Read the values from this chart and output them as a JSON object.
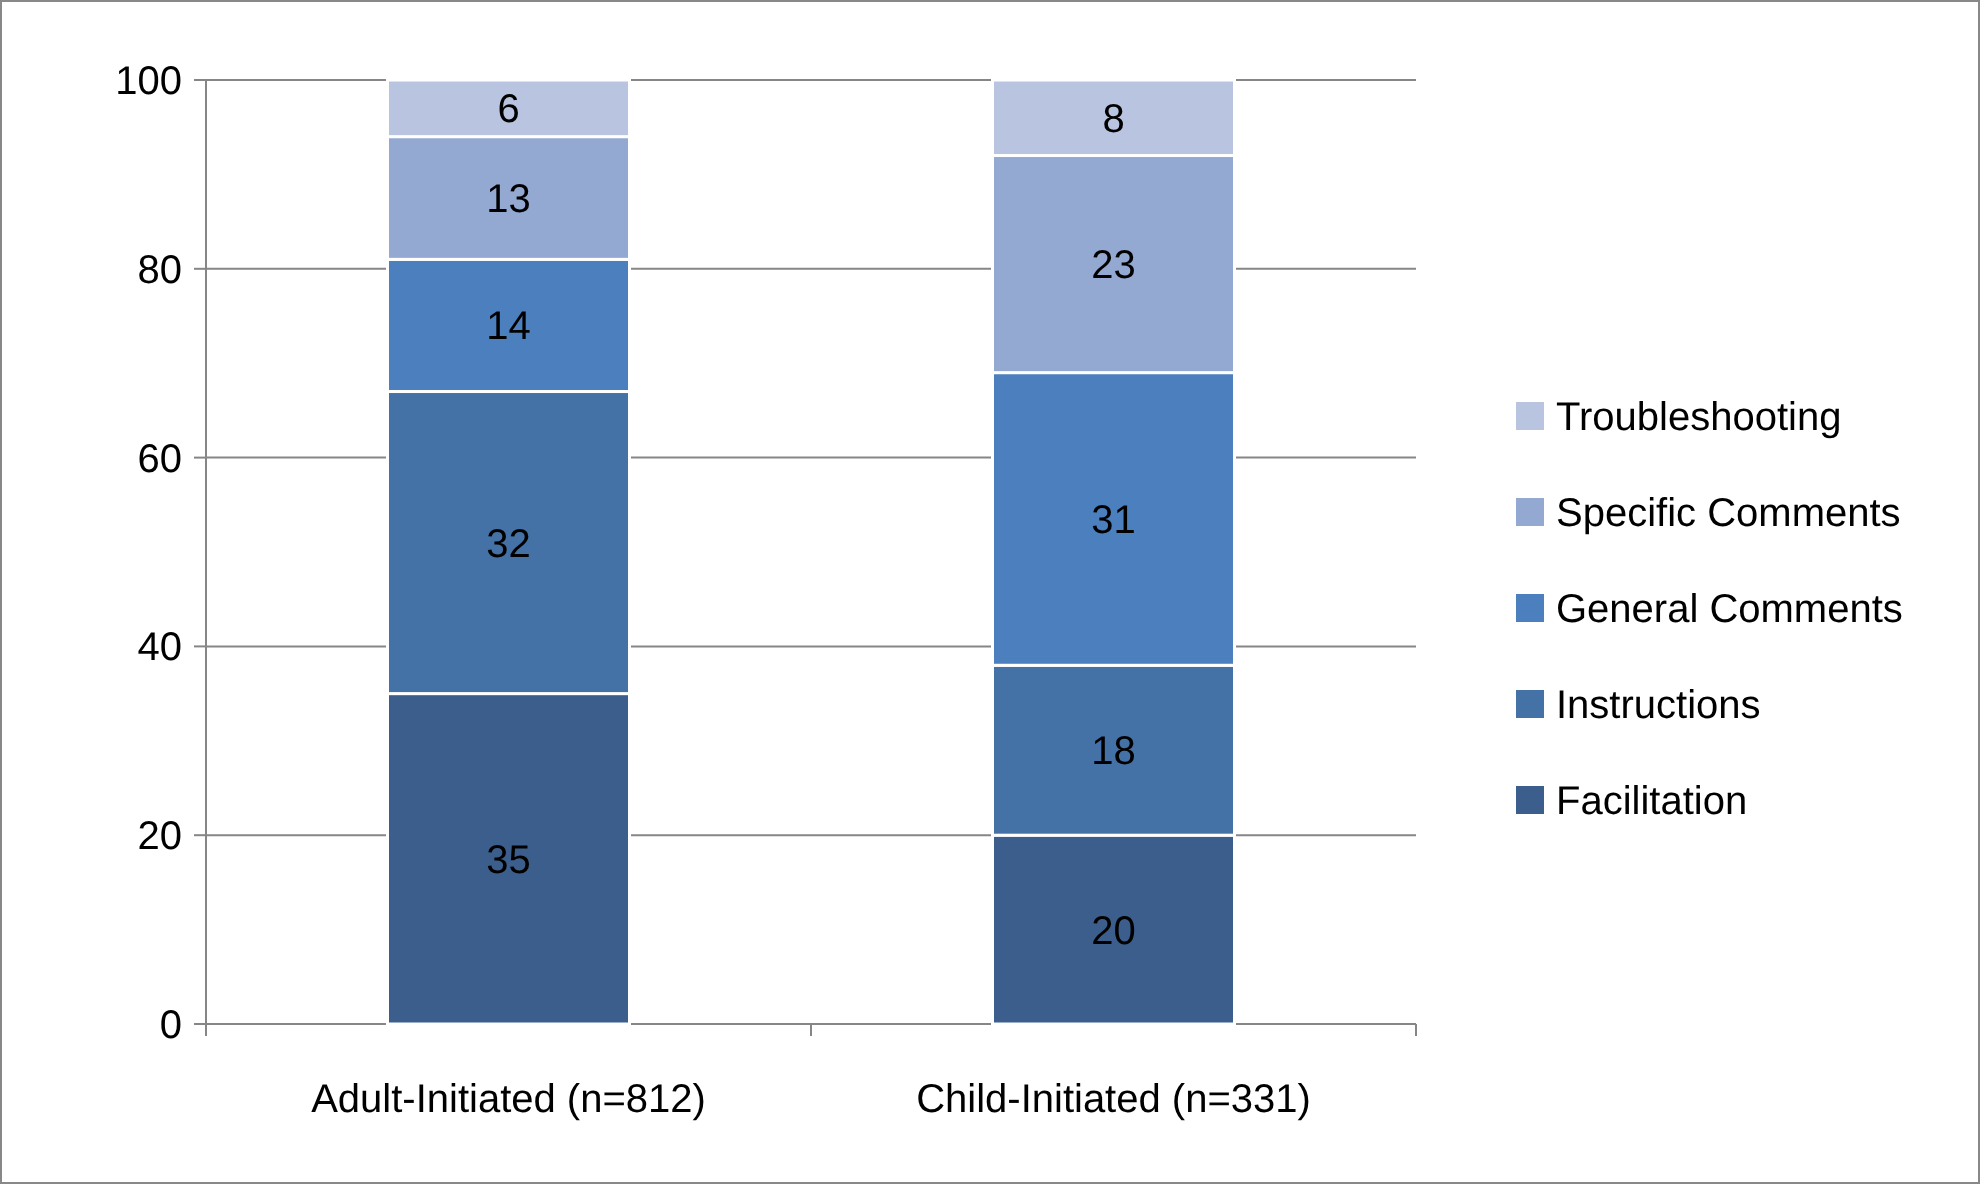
{
  "chart_data": {
    "type": "bar",
    "stacked": true,
    "categories": [
      "Adult-Initiated (n=812)",
      "Child-Initiated (n=331)"
    ],
    "series": [
      {
        "name": "Facilitation",
        "color": "#3b5e8c",
        "values": [
          35,
          20
        ]
      },
      {
        "name": "Instructions",
        "color": "#4471a6",
        "values": [
          32,
          18
        ]
      },
      {
        "name": "General Comments",
        "color": "#4b7fbe",
        "values": [
          14,
          31
        ]
      },
      {
        "name": "Specific Comments",
        "color": "#94a9d1",
        "values": [
          13,
          23
        ]
      },
      {
        "name": "Troubleshooting",
        "color": "#b9c5e0",
        "values": [
          6,
          8
        ]
      }
    ],
    "ylim": [
      0,
      100
    ],
    "yticks": [
      0,
      20,
      40,
      60,
      80,
      100
    ],
    "grid": "y",
    "legend": "right",
    "data_labels": true
  }
}
